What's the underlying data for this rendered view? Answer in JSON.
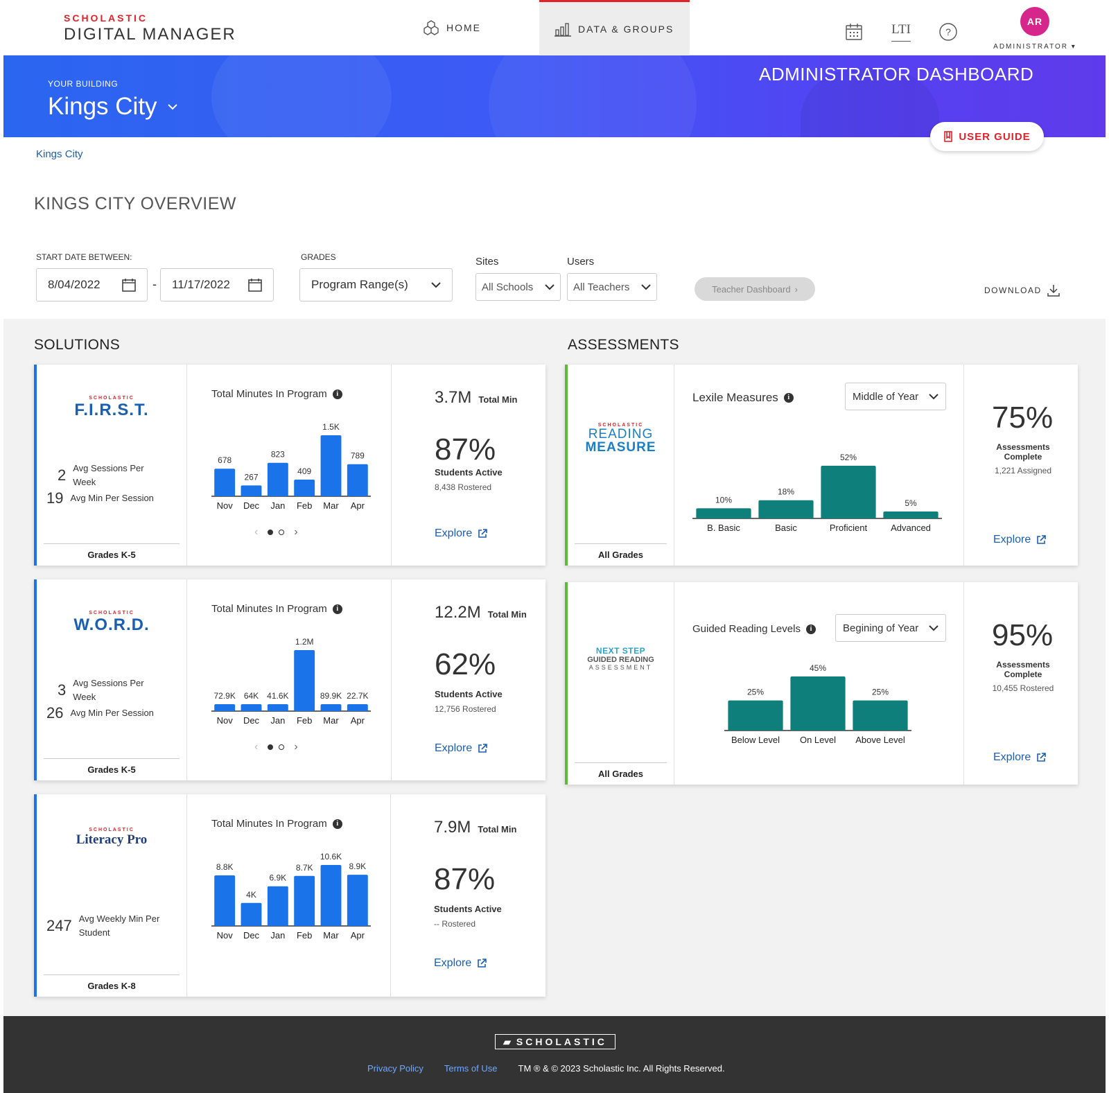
{
  "topnav": {
    "brand_top": "SCHOLASTIC",
    "brand_main": "DIGITAL MANAGER",
    "home": "HOME",
    "data_groups": "DATA & GROUPS",
    "lti": "LTI",
    "avatar_initials": "AR",
    "avatar_label": "ADMINISTRATOR",
    "accent_color": "#e0222a"
  },
  "banner": {
    "building_label": "YOUR BUILDING",
    "building_name": "Kings City",
    "dashboard_title": "ADMINISTRATOR DASHBOARD",
    "user_guide": "USER GUIDE"
  },
  "breadcrumb": "Kings City",
  "overview_title": "KINGS CITY OVERVIEW",
  "filters": {
    "start_date_label": "START DATE BETWEEN:",
    "start_date": "8/04/2022",
    "end_date": "11/17/2022",
    "date_separator": "-",
    "grades_label": "GRADES",
    "grades_value": "Program Range(s)",
    "sites_label": "Sites",
    "sites_value": "All Schools",
    "users_label": "Users",
    "users_value": "All Teachers",
    "teacher_dashboard": "Teacher Dashboard",
    "download": "DOWNLOAD"
  },
  "solutions_title": "SOLUTIONS",
  "assessments_title": "ASSESSMENTS",
  "solutions": [
    {
      "logo_small": "SCHOLASTIC",
      "logo_big": "F.I.R.S.T.",
      "logo_color": "#1a5fb4",
      "stat1_num": "2",
      "stat1_label": "Avg Sessions Per Week",
      "stat2_num": "19",
      "stat2_label": "Avg Min Per Session",
      "grades": "Grades K-5",
      "chart_title": "Total Minutes In Program",
      "total_num": "3.7M",
      "total_label": "Total Min",
      "pct": "87%",
      "pct_label": "Students Active",
      "pct_sub": "8,438 Rostered",
      "explore": "Explore"
    },
    {
      "logo_small": "SCHOLASTIC",
      "logo_big": "W.O.R.D.",
      "logo_color": "#1a5fb4",
      "stat1_num": "3",
      "stat1_label": "Avg Sessions Per Week",
      "stat2_num": "26",
      "stat2_label": "Avg Min Per Session",
      "grades": "Grades K-5",
      "chart_title": "Total Minutes In Program",
      "total_num": "12.2M",
      "total_label": "Total Min",
      "pct": "62%",
      "pct_label": "Students Active",
      "pct_sub": "12,756 Rostered",
      "explore": "Explore"
    },
    {
      "logo_small": "SCHOLASTIC",
      "logo_big": "Literacy Pro",
      "logo_color": "#1f3f7a",
      "stat1_num": "247",
      "stat1_label": "Avg Weekly Min Per Student",
      "grades": "Grades K-8",
      "chart_title": "Total Minutes In Program",
      "total_num": "7.9M",
      "total_label": "Total Min",
      "pct": "87%",
      "pct_label": "Students Active",
      "pct_sub": "-- Rostered",
      "explore": "Explore"
    }
  ],
  "assessments": [
    {
      "logo_small": "SCHOLASTIC",
      "logo_line1": "READING",
      "logo_line2": "MEASURE",
      "grades": "All Grades",
      "chart_title": "Lexile Measures",
      "select": "Middle of Year",
      "pct": "75%",
      "pct_label": "Assessments Complete",
      "pct_sub": "1,221 Assigned",
      "explore": "Explore"
    },
    {
      "logo_line1": "NEXT STEP",
      "logo_line2": "GUIDED READING",
      "logo_line3": "ASSESSMENT",
      "grades": "All Grades",
      "chart_title": "Guided Reading Levels",
      "select": "Begining of Year",
      "pct": "95%",
      "pct_label": "Assessments Complete",
      "pct_sub": "10,455 Rostered",
      "explore": "Explore"
    }
  ],
  "chart_data": [
    {
      "type": "bar",
      "title": "Total Minutes In Program",
      "categories": [
        "Nov",
        "Dec",
        "Jan",
        "Feb",
        "Mar",
        "Apr"
      ],
      "values": [
        678,
        267,
        823,
        409,
        1500,
        789
      ],
      "labels": [
        "678",
        "267",
        "823",
        "409",
        "1.5K",
        "789"
      ],
      "color": "#1a73e8"
    },
    {
      "type": "bar",
      "title": "Total Minutes In Program",
      "categories": [
        "Nov",
        "Dec",
        "Jan",
        "Feb",
        "Mar",
        "Apr"
      ],
      "values": [
        72900,
        64000,
        41600,
        1200000,
        89900,
        22700
      ],
      "labels": [
        "72.9K",
        "64K",
        "41.6K",
        "1.2M",
        "89.9K",
        "22.7K"
      ],
      "color": "#1a73e8"
    },
    {
      "type": "bar",
      "title": "Total Minutes In Program",
      "categories": [
        "Nov",
        "Dec",
        "Jan",
        "Feb",
        "Mar",
        "Apr"
      ],
      "values": [
        8800,
        4000,
        6900,
        8700,
        10600,
        8900
      ],
      "labels": [
        "8.8K",
        "4K",
        "6.9K",
        "8.7K",
        "10.6K",
        "8.9K"
      ],
      "color": "#1a73e8"
    },
    {
      "type": "bar",
      "title": "Lexile Measures",
      "categories": [
        "B. Basic",
        "Basic",
        "Proficient",
        "Advanced"
      ],
      "values": [
        10,
        18,
        52,
        5
      ],
      "labels": [
        "10%",
        "18%",
        "52%",
        "5%"
      ],
      "color": "#0e7f7a"
    },
    {
      "type": "bar",
      "title": "Guided Reading Levels",
      "categories": [
        "Below Level",
        "On Level",
        "Above Level"
      ],
      "values": [
        25,
        45,
        25
      ],
      "labels": [
        "25%",
        "45%",
        "25%"
      ],
      "color": "#0e7f7a"
    }
  ],
  "footer": {
    "logo": "SCHOLASTIC",
    "privacy": "Privacy Policy",
    "terms": "Terms of Use",
    "copyright": "TM ® & © 2023 Scholastic Inc. All Rights Reserved."
  }
}
